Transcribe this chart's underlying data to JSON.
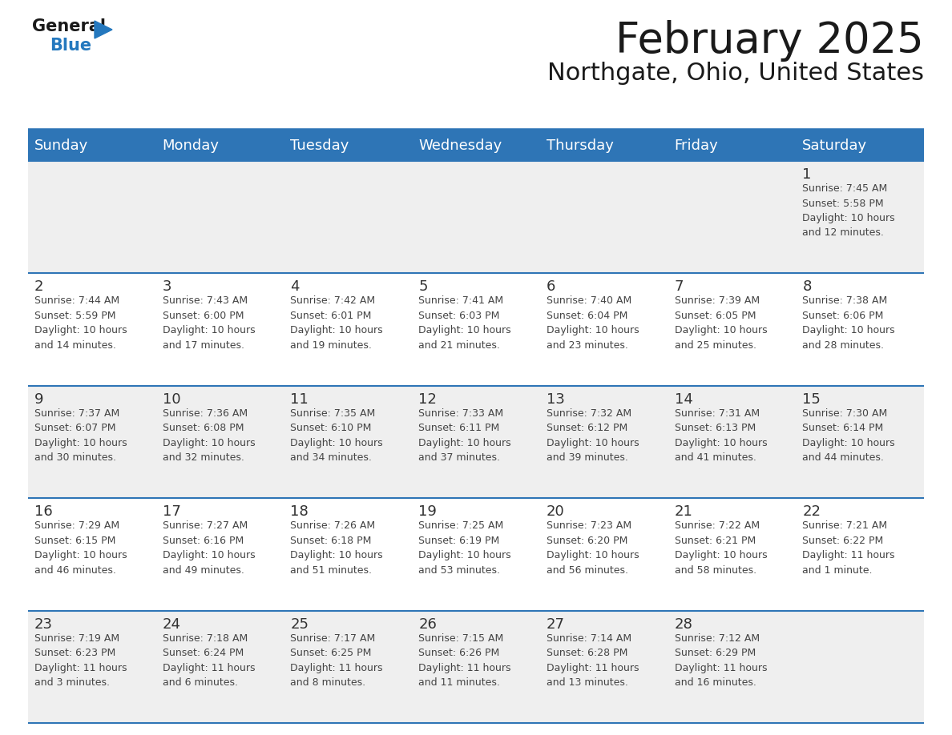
{
  "title": "February 2025",
  "subtitle": "Northgate, Ohio, United States",
  "days_of_week": [
    "Sunday",
    "Monday",
    "Tuesday",
    "Wednesday",
    "Thursday",
    "Friday",
    "Saturday"
  ],
  "header_bg": "#2E75B6",
  "header_text": "#FFFFFF",
  "row_bg_odd": "#EFEFEF",
  "row_bg_even": "#FFFFFF",
  "divider_color": "#2E75B6",
  "cell_text_color": "#444444",
  "day_num_color": "#333333",
  "title_color": "#1a1a1a",
  "subtitle_color": "#1a1a1a",
  "logo_black": "#1a1a1a",
  "logo_blue": "#2478BE",
  "calendar_data": [
    [
      {
        "day": null,
        "info": null
      },
      {
        "day": null,
        "info": null
      },
      {
        "day": null,
        "info": null
      },
      {
        "day": null,
        "info": null
      },
      {
        "day": null,
        "info": null
      },
      {
        "day": null,
        "info": null
      },
      {
        "day": 1,
        "info": "Sunrise: 7:45 AM\nSunset: 5:58 PM\nDaylight: 10 hours\nand 12 minutes."
      }
    ],
    [
      {
        "day": 2,
        "info": "Sunrise: 7:44 AM\nSunset: 5:59 PM\nDaylight: 10 hours\nand 14 minutes."
      },
      {
        "day": 3,
        "info": "Sunrise: 7:43 AM\nSunset: 6:00 PM\nDaylight: 10 hours\nand 17 minutes."
      },
      {
        "day": 4,
        "info": "Sunrise: 7:42 AM\nSunset: 6:01 PM\nDaylight: 10 hours\nand 19 minutes."
      },
      {
        "day": 5,
        "info": "Sunrise: 7:41 AM\nSunset: 6:03 PM\nDaylight: 10 hours\nand 21 minutes."
      },
      {
        "day": 6,
        "info": "Sunrise: 7:40 AM\nSunset: 6:04 PM\nDaylight: 10 hours\nand 23 minutes."
      },
      {
        "day": 7,
        "info": "Sunrise: 7:39 AM\nSunset: 6:05 PM\nDaylight: 10 hours\nand 25 minutes."
      },
      {
        "day": 8,
        "info": "Sunrise: 7:38 AM\nSunset: 6:06 PM\nDaylight: 10 hours\nand 28 minutes."
      }
    ],
    [
      {
        "day": 9,
        "info": "Sunrise: 7:37 AM\nSunset: 6:07 PM\nDaylight: 10 hours\nand 30 minutes."
      },
      {
        "day": 10,
        "info": "Sunrise: 7:36 AM\nSunset: 6:08 PM\nDaylight: 10 hours\nand 32 minutes."
      },
      {
        "day": 11,
        "info": "Sunrise: 7:35 AM\nSunset: 6:10 PM\nDaylight: 10 hours\nand 34 minutes."
      },
      {
        "day": 12,
        "info": "Sunrise: 7:33 AM\nSunset: 6:11 PM\nDaylight: 10 hours\nand 37 minutes."
      },
      {
        "day": 13,
        "info": "Sunrise: 7:32 AM\nSunset: 6:12 PM\nDaylight: 10 hours\nand 39 minutes."
      },
      {
        "day": 14,
        "info": "Sunrise: 7:31 AM\nSunset: 6:13 PM\nDaylight: 10 hours\nand 41 minutes."
      },
      {
        "day": 15,
        "info": "Sunrise: 7:30 AM\nSunset: 6:14 PM\nDaylight: 10 hours\nand 44 minutes."
      }
    ],
    [
      {
        "day": 16,
        "info": "Sunrise: 7:29 AM\nSunset: 6:15 PM\nDaylight: 10 hours\nand 46 minutes."
      },
      {
        "day": 17,
        "info": "Sunrise: 7:27 AM\nSunset: 6:16 PM\nDaylight: 10 hours\nand 49 minutes."
      },
      {
        "day": 18,
        "info": "Sunrise: 7:26 AM\nSunset: 6:18 PM\nDaylight: 10 hours\nand 51 minutes."
      },
      {
        "day": 19,
        "info": "Sunrise: 7:25 AM\nSunset: 6:19 PM\nDaylight: 10 hours\nand 53 minutes."
      },
      {
        "day": 20,
        "info": "Sunrise: 7:23 AM\nSunset: 6:20 PM\nDaylight: 10 hours\nand 56 minutes."
      },
      {
        "day": 21,
        "info": "Sunrise: 7:22 AM\nSunset: 6:21 PM\nDaylight: 10 hours\nand 58 minutes."
      },
      {
        "day": 22,
        "info": "Sunrise: 7:21 AM\nSunset: 6:22 PM\nDaylight: 11 hours\nand 1 minute."
      }
    ],
    [
      {
        "day": 23,
        "info": "Sunrise: 7:19 AM\nSunset: 6:23 PM\nDaylight: 11 hours\nand 3 minutes."
      },
      {
        "day": 24,
        "info": "Sunrise: 7:18 AM\nSunset: 6:24 PM\nDaylight: 11 hours\nand 6 minutes."
      },
      {
        "day": 25,
        "info": "Sunrise: 7:17 AM\nSunset: 6:25 PM\nDaylight: 11 hours\nand 8 minutes."
      },
      {
        "day": 26,
        "info": "Sunrise: 7:15 AM\nSunset: 6:26 PM\nDaylight: 11 hours\nand 11 minutes."
      },
      {
        "day": 27,
        "info": "Sunrise: 7:14 AM\nSunset: 6:28 PM\nDaylight: 11 hours\nand 13 minutes."
      },
      {
        "day": 28,
        "info": "Sunrise: 7:12 AM\nSunset: 6:29 PM\nDaylight: 11 hours\nand 16 minutes."
      },
      {
        "day": null,
        "info": null
      }
    ]
  ]
}
